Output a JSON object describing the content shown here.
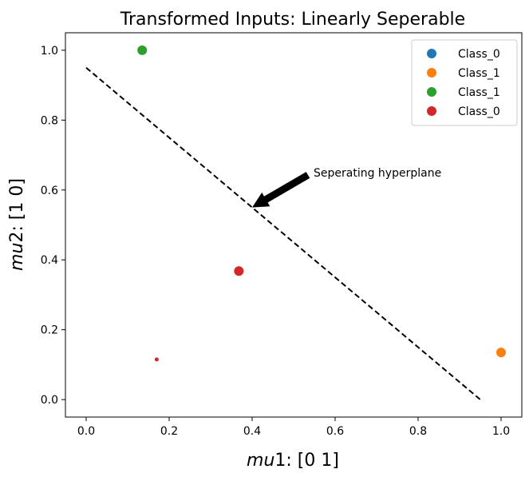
{
  "chart_data": {
    "type": "scatter",
    "title": "Transformed Inputs: Linearly Seperable",
    "xlabel_math": "mu",
    "xlabel_suffix": "1: [0 1]",
    "ylabel_math": "mu",
    "ylabel_suffix": "2: [1 0]",
    "xlim": [
      -0.05,
      1.05
    ],
    "ylim": [
      -0.05,
      1.05
    ],
    "xticks": [
      0.0,
      0.2,
      0.4,
      0.6,
      0.8,
      1.0
    ],
    "yticks": [
      0.0,
      0.2,
      0.4,
      0.6,
      0.8,
      1.0
    ],
    "xtick_labels": [
      "0.0",
      "0.2",
      "0.4",
      "0.6",
      "0.8",
      "1.0"
    ],
    "ytick_labels": [
      "0.0",
      "0.2",
      "0.4",
      "0.6",
      "0.8",
      "1.0"
    ],
    "grid": false,
    "legend_position": "top-right",
    "series": [
      {
        "name": "Class_0",
        "color": "#1f77b4",
        "points": []
      },
      {
        "name": "Class_1",
        "color": "#ff7f0e",
        "points": [
          {
            "x": 1.0,
            "y": 0.135,
            "size": "large"
          }
        ]
      },
      {
        "name": "Class_1",
        "color": "#2ca02c",
        "points": [
          {
            "x": 0.135,
            "y": 1.0,
            "size": "large"
          }
        ]
      },
      {
        "name": "Class_0",
        "color": "#d62728",
        "points": [
          {
            "x": 0.368,
            "y": 0.368,
            "size": "large"
          },
          {
            "x": 0.17,
            "y": 0.115,
            "size": "small"
          }
        ]
      }
    ],
    "separator_line": {
      "x": [
        0.0,
        0.95
      ],
      "y": [
        0.95,
        0.0
      ],
      "style": "dashed",
      "color": "#000000"
    },
    "annotation": {
      "text": "Seperating hyperplane",
      "arrow_target": {
        "x": 0.4,
        "y": 0.55
      },
      "text_anchor": {
        "x": 0.55,
        "y": 0.65
      }
    }
  }
}
